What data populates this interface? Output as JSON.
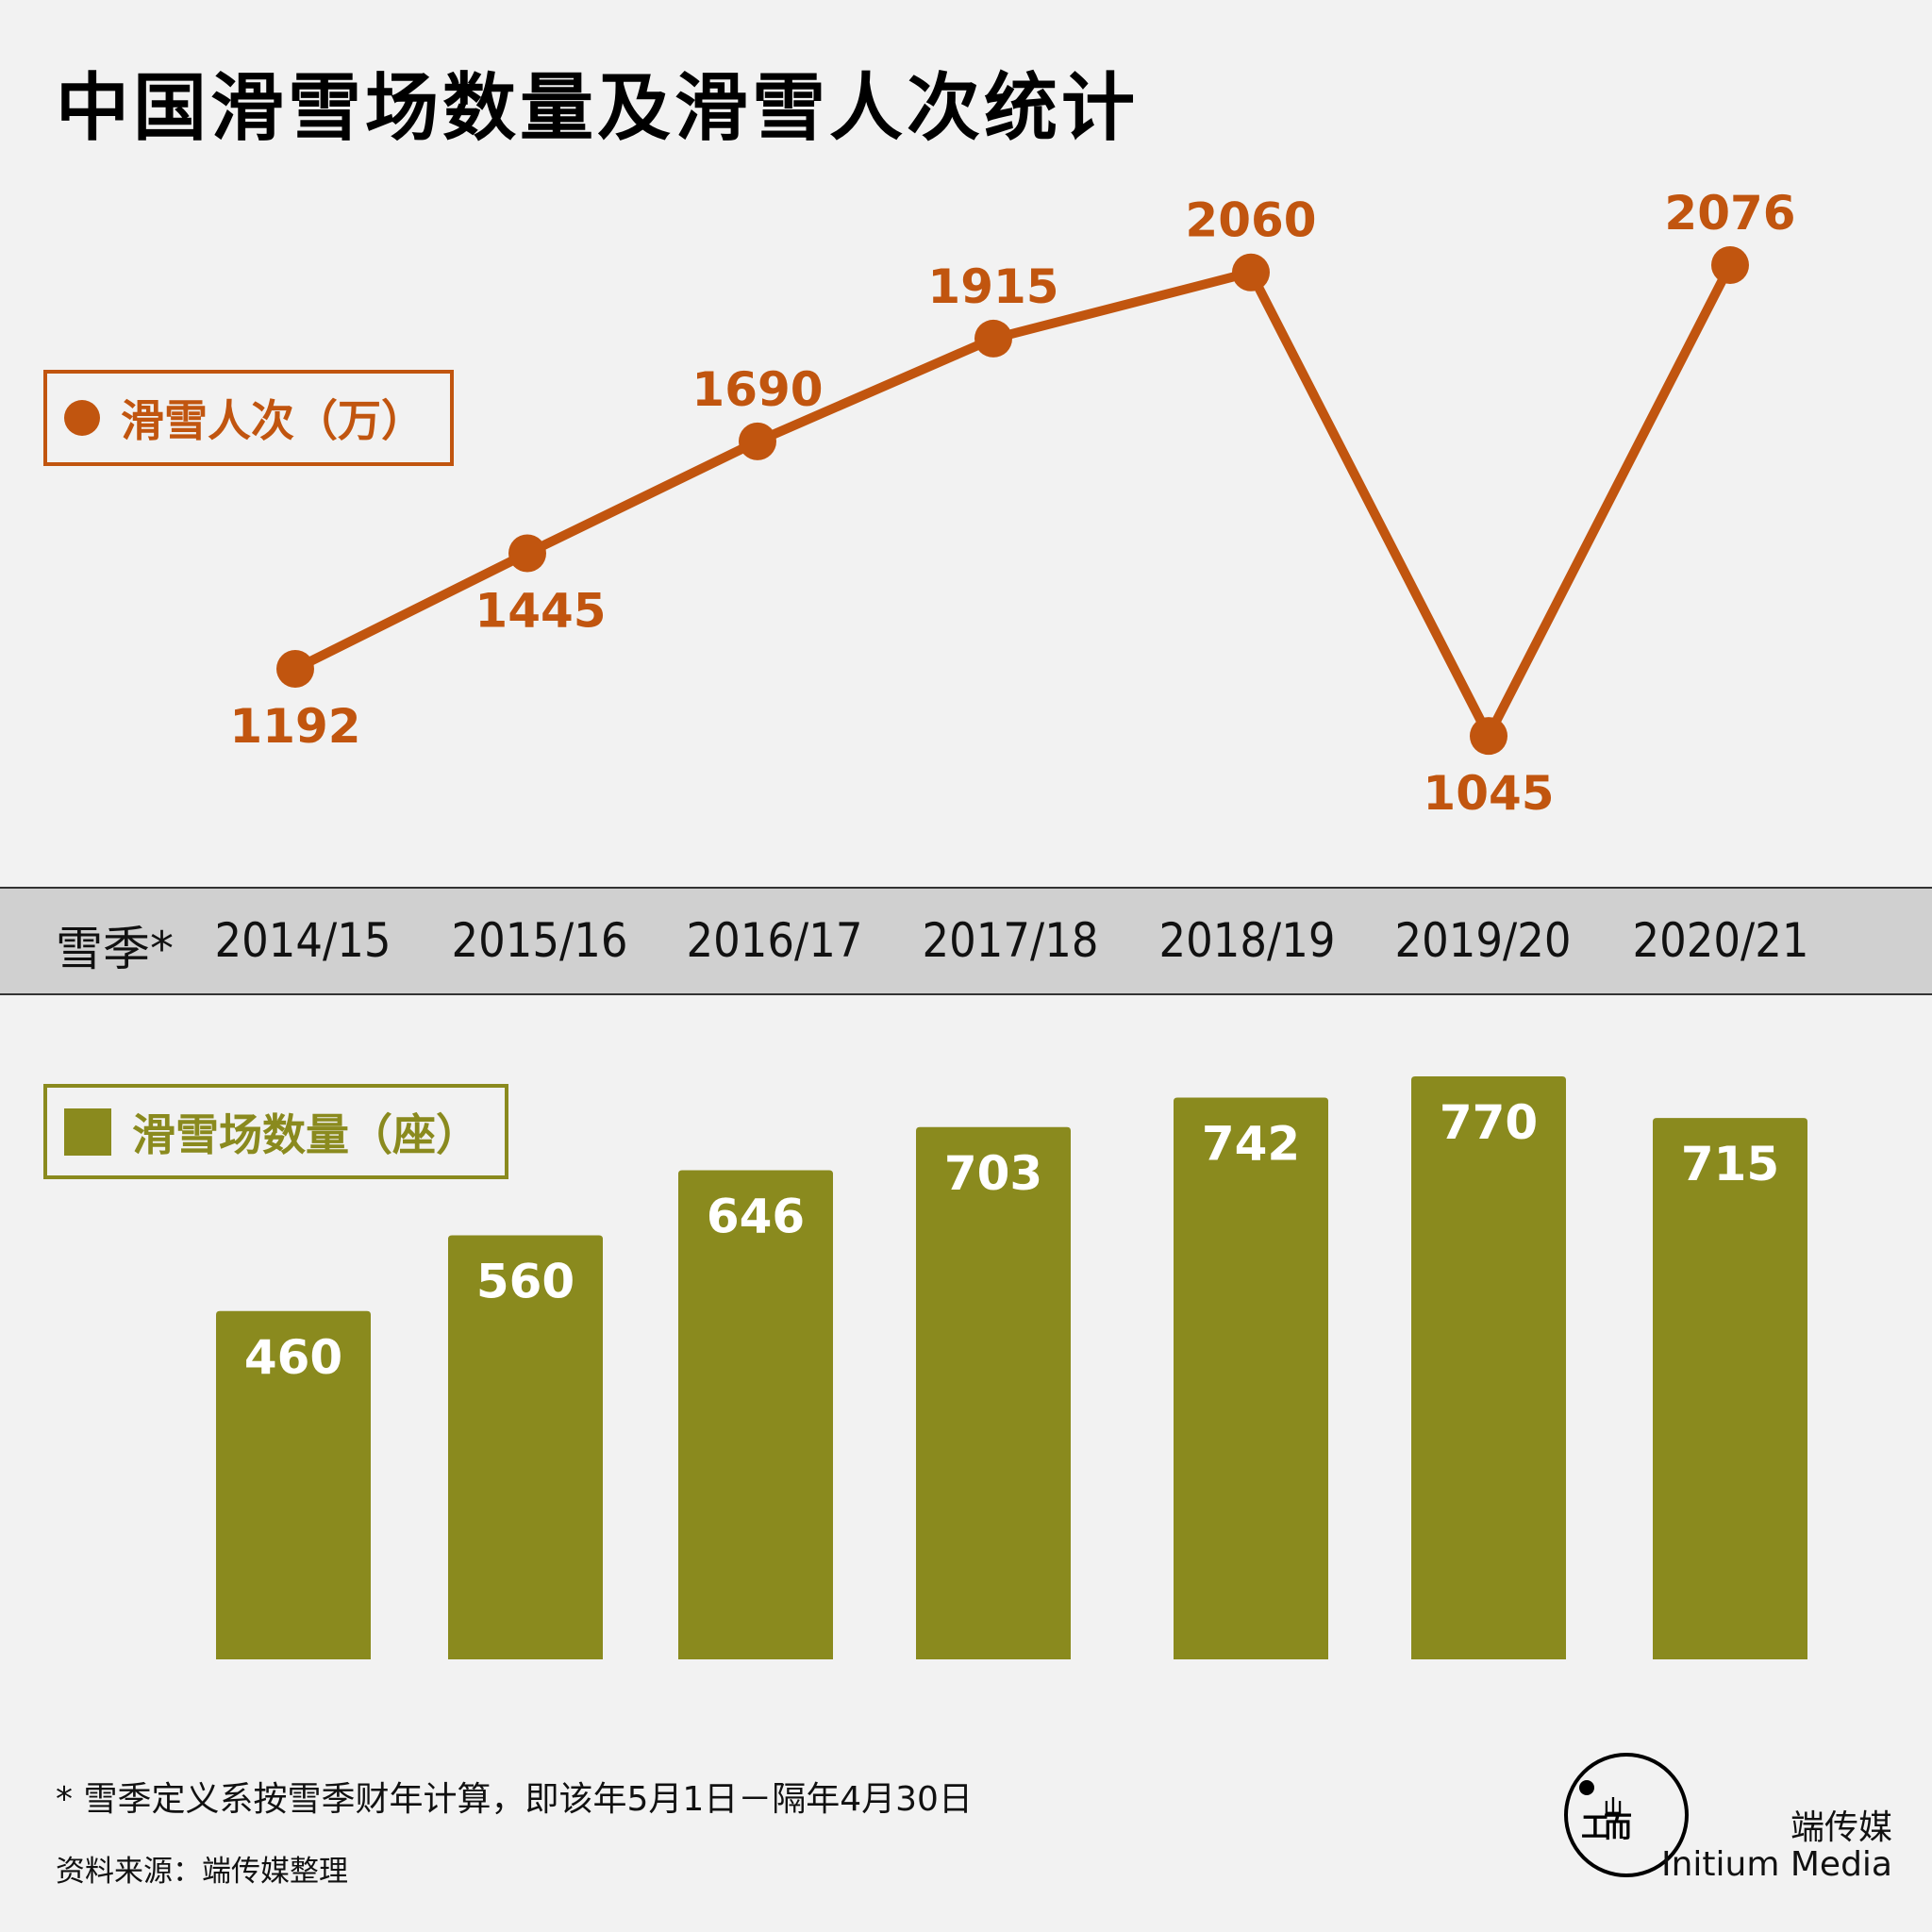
{
  "title": "中国滑雪场数量及滑雪人次统计",
  "season_label": "雪季*",
  "colors": {
    "line": "#c1550f",
    "bar": "#8a8a1e",
    "band": "#d0d0d0"
  },
  "chart_data": [
    {
      "type": "line",
      "title": "滑雪人次（万）",
      "legend": "滑雪人次（万）",
      "categories": [
        "2014/15",
        "2015/16",
        "2016/17",
        "2017/18",
        "2018/19",
        "2019/20",
        "2020/21"
      ],
      "values": [
        1192,
        1445,
        1690,
        1915,
        2060,
        1045,
        2076
      ]
    },
    {
      "type": "bar",
      "title": "滑雪场数量（座）",
      "legend": "滑雪场数量（座）",
      "categories": [
        "2014/15",
        "2015/16",
        "2016/17",
        "2017/18",
        "2018/19",
        "2019/20",
        "2020/21"
      ],
      "values": [
        460,
        560,
        646,
        703,
        742,
        770,
        715
      ]
    }
  ],
  "footnote": "* 雪季定义系按雪季财年计算，即该年5月1日－隔年4月30日",
  "source": "资料来源：端传媒整理",
  "brand": {
    "cn": "端传媒",
    "en": "Initium Media"
  }
}
